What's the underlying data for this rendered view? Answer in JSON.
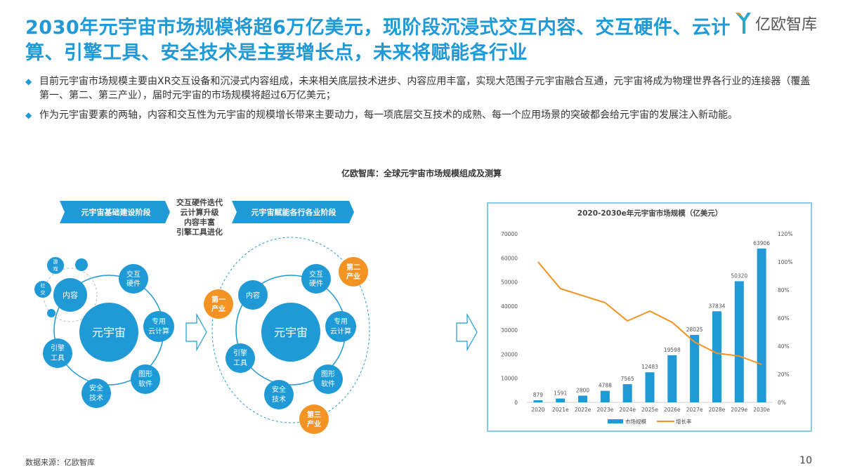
{
  "title": "2030年元宇宙市场规模将超6万亿美元，现阶段沉浸式交互内容、交互硬件、云计算、引擎工具、安全技术是主要增长点，未来将赋能各行业",
  "logo": "亿欧智库",
  "bullets": [
    "目前元宇宙市场规模主要由XR交互设备和沉浸式内容组成，未来相关底层技术进步、内容应用丰富，实现大范围子元宇宙融合互通，元宇宙将成为物理世界各行业的连接器（覆盖第一、第二、第三产业），届时元宇宙的市场规模将超过6万亿美元；",
    "作为元宇宙要素的两轴，内容和交互性为元宇宙的规模增长带来主要动力，每一项底层交互技术的成熟、每一个应用场景的突破都会给元宇宙的发展注入新动能。"
  ],
  "figure_caption": "亿欧智库：全球元宇宙市场规模组成及测算",
  "diagram": {
    "stage1": "元宇宙基础建设阶段",
    "stage2": "元宇宙赋能各行各业阶段",
    "drivers": [
      "交互硬件迭代",
      "云计算升级",
      "内容丰富",
      "引擎工具进化"
    ],
    "center": "元宇宙",
    "nodes": {
      "content": [
        "内容"
      ],
      "hardware": [
        "交互",
        "硬件"
      ],
      "cloud": [
        "专用",
        "云计算"
      ],
      "graphics": [
        "图形",
        "软件"
      ],
      "security": [
        "安全",
        "技术"
      ],
      "engine": [
        "引擎",
        "工具"
      ],
      "game": [
        "游",
        "戏"
      ],
      "social": [
        "社",
        "交"
      ]
    },
    "industries": {
      "primary": [
        "第一",
        "产业"
      ],
      "secondary": [
        "第二",
        "产业"
      ],
      "tertiary": [
        "第三",
        "产业"
      ]
    },
    "colors": {
      "blue": "#1f9ad6",
      "orange": "#f39323"
    }
  },
  "chart_data": {
    "type": "bar",
    "title": "2020-2030e年元宇宙市场规模（亿美元）",
    "categories": [
      "2020",
      "2021e",
      "2022e",
      "2023e",
      "2024e",
      "2025e",
      "2026e",
      "2027e",
      "2028e",
      "2029e",
      "2030e"
    ],
    "series": [
      {
        "name": "市场规模",
        "type": "bar",
        "axis": "left",
        "color": "#1f9ad6",
        "values": [
          879,
          1591,
          2800,
          4788,
          7565,
          12483,
          19598,
          28025,
          37834,
          50320,
          63906
        ]
      },
      {
        "name": "增长率",
        "type": "line",
        "axis": "right",
        "color": "#f39323",
        "values": [
          100,
          81,
          76,
          71,
          58,
          65,
          57,
          43,
          35,
          33,
          27
        ]
      }
    ],
    "ylim": [
      0,
      70000
    ],
    "yticks": [
      "0",
      "10000",
      "20000",
      "30000",
      "40000",
      "50000",
      "60000",
      "70000"
    ],
    "y2lim": [
      0,
      120
    ],
    "y2ticks": [
      "0%",
      "20%",
      "40%",
      "60%",
      "80%",
      "100%",
      "120%"
    ],
    "legend": "bottom"
  },
  "footer": {
    "source": "数据来源：亿欧智库",
    "page": "10"
  }
}
